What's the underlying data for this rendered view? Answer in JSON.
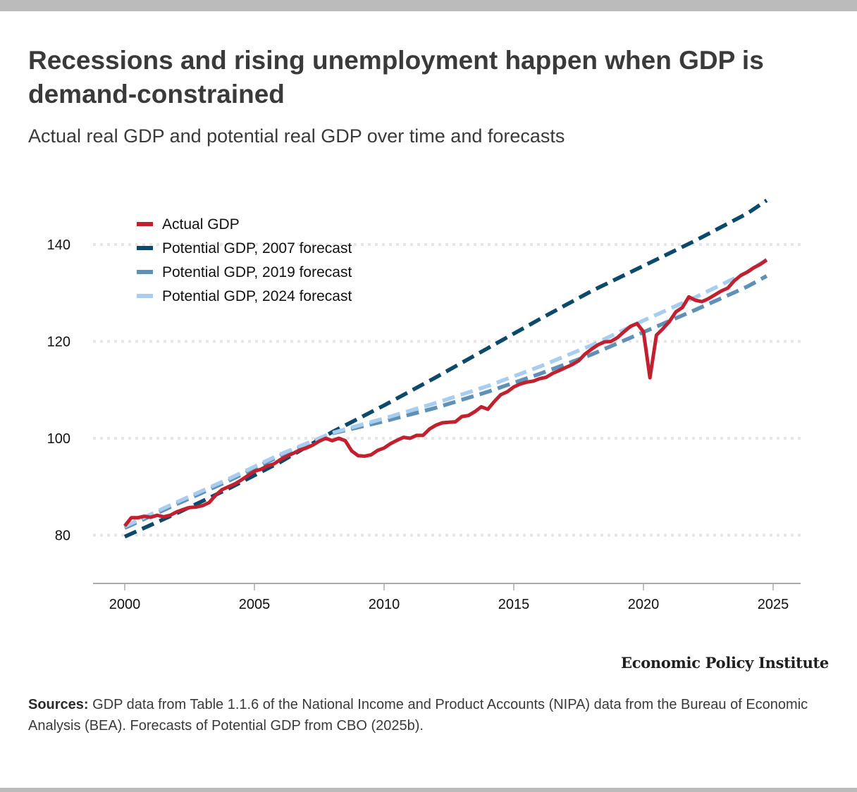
{
  "header": {
    "title": "Recessions and rising unemployment happen when GDP is demand-constrained",
    "subtitle": "Actual real GDP and potential real GDP over time and forecasts"
  },
  "footer": {
    "brand": "Economic Policy Institute",
    "sources_label": "Sources:",
    "sources_text": " GDP data from Table 1.1.6 of the National Income and Product Accounts (NIPA) data from the Bureau of Economic Analysis (BEA). Forecasts of Potential GDP from CBO (2025b)."
  },
  "colors": {
    "actual": "#c1202f",
    "potential_2007": "#0b4a6b",
    "potential_2019": "#5f91b7",
    "potential_2024": "#a9cdee",
    "grid": "#e6e6e6",
    "axis": "#aaaaaa",
    "frame": "#bbbbbb"
  },
  "chart_data": {
    "type": "line",
    "title": "Recessions and rising unemployment happen when GDP is demand-constrained",
    "subtitle": "Actual real GDP and potential real GDP over time and forecasts",
    "xlabel": "",
    "ylabel": "",
    "xlim": [
      1998.8,
      2026.0
    ],
    "ylim": [
      70,
      149
    ],
    "xticks": [
      2000,
      2005,
      2010,
      2015,
      2020,
      2025
    ],
    "yticks": [
      80,
      100,
      120,
      140
    ],
    "grid": "horizontal dotted",
    "legend_position": "top-left",
    "series": [
      {
        "name": "Actual GDP",
        "style": "solid",
        "color": "#c1202f",
        "x": [
          2000.0,
          2000.25,
          2000.5,
          2000.75,
          2001.0,
          2001.25,
          2001.5,
          2001.75,
          2002.0,
          2002.25,
          2002.5,
          2002.75,
          2003.0,
          2003.25,
          2003.5,
          2003.75,
          2004.0,
          2004.25,
          2004.5,
          2004.75,
          2005.0,
          2005.25,
          2005.5,
          2005.75,
          2006.0,
          2006.25,
          2006.5,
          2006.75,
          2007.0,
          2007.25,
          2007.5,
          2007.75,
          2008.0,
          2008.25,
          2008.5,
          2008.75,
          2009.0,
          2009.25,
          2009.5,
          2009.75,
          2010.0,
          2010.25,
          2010.5,
          2010.75,
          2011.0,
          2011.25,
          2011.5,
          2011.75,
          2012.0,
          2012.25,
          2012.5,
          2012.75,
          2013.0,
          2013.25,
          2013.5,
          2013.75,
          2014.0,
          2014.25,
          2014.5,
          2014.75,
          2015.0,
          2015.25,
          2015.5,
          2015.75,
          2016.0,
          2016.25,
          2016.5,
          2016.75,
          2017.0,
          2017.25,
          2017.5,
          2017.75,
          2018.0,
          2018.25,
          2018.5,
          2018.75,
          2019.0,
          2019.25,
          2019.5,
          2019.75,
          2020.0,
          2020.25,
          2020.5,
          2020.75,
          2021.0,
          2021.25,
          2021.5,
          2021.75,
          2022.0,
          2022.25,
          2022.5,
          2022.75,
          2023.0,
          2023.25,
          2023.5,
          2023.75,
          2024.0,
          2024.25,
          2024.5,
          2024.75
        ],
        "values": [
          81.9,
          83.6,
          83.6,
          83.9,
          83.7,
          84.1,
          83.8,
          84.1,
          84.8,
          85.3,
          85.7,
          85.8,
          86.1,
          86.7,
          88.2,
          89.4,
          90.0,
          90.6,
          91.4,
          92.3,
          93.2,
          93.6,
          94.3,
          94.7,
          95.6,
          96.3,
          96.9,
          97.6,
          98.0,
          98.6,
          99.4,
          100.0,
          99.5,
          100.0,
          99.5,
          97.4,
          96.4,
          96.3,
          96.6,
          97.5,
          98.0,
          98.9,
          99.6,
          100.2,
          100.0,
          100.6,
          100.6,
          101.9,
          102.7,
          103.2,
          103.3,
          103.4,
          104.5,
          104.7,
          105.5,
          106.5,
          106.0,
          107.6,
          109.0,
          109.6,
          110.6,
          111.2,
          111.6,
          111.8,
          112.3,
          112.6,
          113.4,
          114.0,
          114.6,
          115.2,
          116.0,
          117.4,
          118.4,
          119.3,
          119.9,
          120.0,
          120.8,
          122.0,
          123.1,
          123.7,
          122.0,
          112.5,
          121.3,
          122.6,
          124.1,
          126.1,
          127.0,
          129.2,
          128.5,
          128.2,
          128.8,
          129.6,
          130.4,
          131.0,
          132.5,
          133.6,
          134.3,
          135.2,
          135.9,
          136.8
        ]
      },
      {
        "name": "Potential GDP, 2007 forecast",
        "style": "dashed",
        "color": "#0b4a6b",
        "x": [
          2000.0,
          2002.0,
          2004.0,
          2006.0,
          2008.0,
          2010.0,
          2012.0,
          2014.0,
          2016.0,
          2018.0,
          2020.0,
          2022.0,
          2024.0,
          2024.75
        ],
        "values": [
          79.7,
          84.5,
          89.6,
          95.1,
          101.3,
          106.8,
          112.6,
          118.6,
          124.6,
          130.4,
          135.6,
          140.8,
          146.4,
          149.1
        ]
      },
      {
        "name": "Potential GDP, 2019 forecast",
        "style": "dashed",
        "color": "#5f91b7",
        "x": [
          2000.0,
          2002.0,
          2004.0,
          2006.0,
          2008.0,
          2010.0,
          2012.0,
          2014.0,
          2016.0,
          2018.0,
          2020.0,
          2022.0,
          2024.0,
          2024.75
        ],
        "values": [
          81.5,
          86.4,
          91.2,
          96.4,
          101.0,
          103.5,
          106.3,
          109.6,
          113.3,
          117.3,
          121.9,
          126.5,
          131.3,
          133.5
        ]
      },
      {
        "name": "Potential GDP, 2024 forecast",
        "style": "dashed",
        "color": "#a9cdee",
        "x": [
          2000.0,
          2002.0,
          2004.0,
          2006.0,
          2008.0,
          2010.0,
          2012.0,
          2014.0,
          2016.0,
          2018.0,
          2020.0,
          2022.0,
          2024.0,
          2024.75
        ],
        "values": [
          81.8,
          86.8,
          91.6,
          96.7,
          101.1,
          104.1,
          107.3,
          110.8,
          114.8,
          119.2,
          124.3,
          129.1,
          134.3,
          136.9
        ]
      }
    ]
  },
  "legend": [
    {
      "label": "Actual GDP",
      "color": "#c1202f"
    },
    {
      "label": "Potential GDP, 2007 forecast",
      "color": "#0b4a6b"
    },
    {
      "label": "Potential GDP, 2019 forecast",
      "color": "#5f91b7"
    },
    {
      "label": "Potential GDP, 2024 forecast",
      "color": "#a9cdee"
    }
  ]
}
